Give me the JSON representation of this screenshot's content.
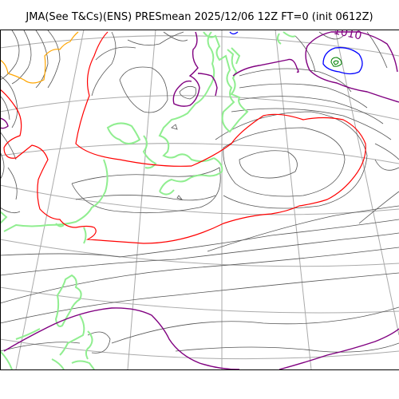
{
  "title": "JMA(See T&Cs)(ENS) PRESmean 2025/12/06 12Z FT=0 (init 0612Z)",
  "labels": {
    "pressure_label": "1010"
  },
  "colors": {
    "isobar": "#555555",
    "isobar_1000": "#0000ff",
    "isobar_1010": "#800080",
    "isobar_1020": "#ff0000",
    "isobar_1030": "#ffa500",
    "coastline": "#90ee90",
    "graticule": "#aaaaaa",
    "low_center": "#008000"
  }
}
